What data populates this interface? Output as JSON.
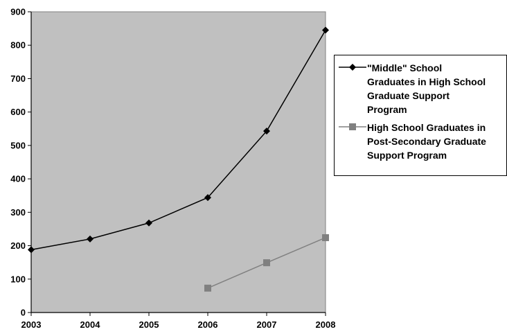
{
  "chart_data": {
    "type": "line",
    "x": [
      2003,
      2004,
      2005,
      2006,
      2007,
      2008
    ],
    "ylim": [
      0,
      900
    ],
    "yticks": [
      0,
      100,
      200,
      300,
      400,
      500,
      600,
      700,
      800,
      900
    ],
    "grid": false,
    "legend_position": "right",
    "plot_background": "#c0c0c0",
    "series": [
      {
        "name": "\"Middle\" School Graduates in High School Graduate Support Program",
        "legend_lines": [
          "\"Middle\" School",
          "Graduates in High School",
          "Graduate Support",
          "Program"
        ],
        "values": [
          188,
          220,
          268,
          344,
          543,
          845
        ],
        "color": "#000000",
        "marker": "diamond"
      },
      {
        "name": "High School Graduates in Post-Secondary Graduate Support Program",
        "legend_lines": [
          "High School Graduates in",
          "Post-Secondary Graduate",
          "Support Program"
        ],
        "values": [
          null,
          null,
          null,
          73,
          149,
          224
        ],
        "color": "#808080",
        "marker": "square"
      }
    ]
  }
}
